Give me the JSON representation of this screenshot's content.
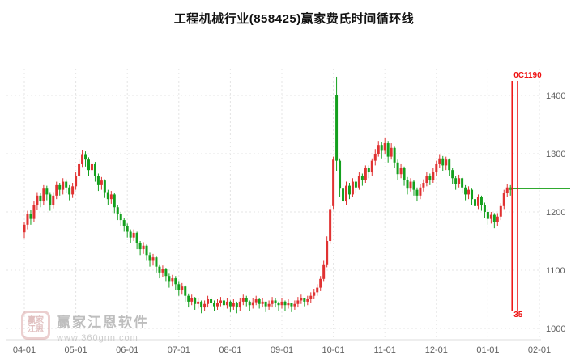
{
  "title": "工程机械行业(858425)赢家费氏时间循环线",
  "watermark": {
    "brand": "赢家江恩软件",
    "url": "www.360gnn.com",
    "logo_line1": "赢家",
    "logo_line2": "江恩"
  },
  "colors": {
    "up": "#e03232",
    "down": "#14a01e",
    "cycle_line": "#ee1111",
    "cycle_label": "#ee1111",
    "extension_line": "#2faa2f",
    "grid": "#e4e4e4",
    "axis_text": "#606060",
    "title_text": "#111111",
    "watermark_text": "#b3b3b3"
  },
  "annotations": {
    "cycle_top_label": "0C1190",
    "cycle_bottom_label": "35"
  },
  "chart_data": {
    "type": "candlestick",
    "title": "工程机械行业(858425)赢家费氏时间循环线",
    "x_tick_labels": [
      "04-01",
      "05-01",
      "06-01",
      "07-01",
      "08-01",
      "09-01",
      "10-01",
      "11-01",
      "12-01",
      "01-01",
      "02-01"
    ],
    "x_tick_indices": [
      0,
      16,
      32,
      48,
      64,
      80,
      96,
      112,
      128,
      144,
      160
    ],
    "y_ticks": [
      1000,
      1100,
      1200,
      1300,
      1400
    ],
    "ylim": [
      980,
      1450
    ],
    "grid": true,
    "legend": "none",
    "ohlc_format": "[open, close, low, high]",
    "cycle_lines_x_indices": [
      151.5,
      153.2
    ],
    "extension_line_price": 1240,
    "candles": [
      [
        1165,
        1178,
        1155,
        1182
      ],
      [
        1178,
        1196,
        1170,
        1202
      ],
      [
        1196,
        1188,
        1178,
        1204
      ],
      [
        1188,
        1212,
        1182,
        1218
      ],
      [
        1212,
        1228,
        1204,
        1234
      ],
      [
        1228,
        1218,
        1208,
        1232
      ],
      [
        1218,
        1240,
        1212,
        1246
      ],
      [
        1240,
        1230,
        1220,
        1245
      ],
      [
        1230,
        1212,
        1202,
        1234
      ],
      [
        1212,
        1228,
        1206,
        1234
      ],
      [
        1228,
        1246,
        1222,
        1252
      ],
      [
        1246,
        1238,
        1228,
        1250
      ],
      [
        1238,
        1252,
        1230,
        1258
      ],
      [
        1252,
        1242,
        1232,
        1256
      ],
      [
        1242,
        1230,
        1220,
        1246
      ],
      [
        1230,
        1244,
        1224,
        1250
      ],
      [
        1244,
        1262,
        1238,
        1268
      ],
      [
        1262,
        1282,
        1256,
        1290
      ],
      [
        1282,
        1298,
        1276,
        1306
      ],
      [
        1298,
        1290,
        1278,
        1304
      ],
      [
        1290,
        1272,
        1262,
        1294
      ],
      [
        1272,
        1282,
        1266,
        1288
      ],
      [
        1282,
        1262,
        1252,
        1286
      ],
      [
        1262,
        1246,
        1236,
        1266
      ],
      [
        1246,
        1254,
        1238,
        1260
      ],
      [
        1254,
        1234,
        1224,
        1256
      ],
      [
        1234,
        1222,
        1212,
        1238
      ],
      [
        1222,
        1230,
        1214,
        1236
      ],
      [
        1230,
        1208,
        1198,
        1232
      ],
      [
        1208,
        1196,
        1186,
        1212
      ],
      [
        1196,
        1186,
        1176,
        1200
      ],
      [
        1186,
        1176,
        1166,
        1190
      ],
      [
        1176,
        1166,
        1156,
        1180
      ],
      [
        1166,
        1156,
        1146,
        1170
      ],
      [
        1156,
        1164,
        1150,
        1170
      ],
      [
        1164,
        1146,
        1136,
        1166
      ],
      [
        1146,
        1136,
        1126,
        1150
      ],
      [
        1136,
        1142,
        1128,
        1148
      ],
      [
        1142,
        1126,
        1116,
        1144
      ],
      [
        1126,
        1116,
        1106,
        1130
      ],
      [
        1116,
        1122,
        1108,
        1128
      ],
      [
        1122,
        1106,
        1096,
        1124
      ],
      [
        1106,
        1096,
        1086,
        1110
      ],
      [
        1096,
        1102,
        1088,
        1108
      ],
      [
        1102,
        1090,
        1080,
        1104
      ],
      [
        1090,
        1080,
        1070,
        1094
      ],
      [
        1080,
        1086,
        1072,
        1092
      ],
      [
        1086,
        1076,
        1066,
        1090
      ],
      [
        1076,
        1066,
        1056,
        1080
      ],
      [
        1066,
        1072,
        1058,
        1078
      ],
      [
        1072,
        1056,
        1046,
        1074
      ],
      [
        1056,
        1046,
        1036,
        1060
      ],
      [
        1046,
        1052,
        1040,
        1058
      ],
      [
        1052,
        1042,
        1032,
        1054
      ],
      [
        1042,
        1046,
        1034,
        1052
      ],
      [
        1046,
        1036,
        1026,
        1048
      ],
      [
        1036,
        1042,
        1030,
        1048
      ],
      [
        1042,
        1050,
        1036,
        1056
      ],
      [
        1050,
        1044,
        1036,
        1054
      ],
      [
        1044,
        1038,
        1030,
        1048
      ],
      [
        1038,
        1044,
        1032,
        1050
      ],
      [
        1044,
        1048,
        1038,
        1054
      ],
      [
        1048,
        1040,
        1032,
        1052
      ],
      [
        1040,
        1046,
        1034,
        1052
      ],
      [
        1046,
        1038,
        1028,
        1048
      ],
      [
        1038,
        1044,
        1032,
        1050
      ],
      [
        1044,
        1036,
        1026,
        1046
      ],
      [
        1036,
        1046,
        1030,
        1052
      ],
      [
        1046,
        1052,
        1040,
        1058
      ],
      [
        1052,
        1046,
        1038,
        1056
      ],
      [
        1046,
        1040,
        1030,
        1048
      ],
      [
        1040,
        1045,
        1034,
        1052
      ],
      [
        1045,
        1050,
        1040,
        1056
      ],
      [
        1050,
        1042,
        1034,
        1052
      ],
      [
        1042,
        1046,
        1036,
        1052
      ],
      [
        1046,
        1038,
        1028,
        1046
      ],
      [
        1038,
        1042,
        1032,
        1048
      ],
      [
        1042,
        1048,
        1036,
        1054
      ],
      [
        1048,
        1044,
        1036,
        1052
      ],
      [
        1044,
        1040,
        1030,
        1046
      ],
      [
        1040,
        1046,
        1034,
        1052
      ],
      [
        1046,
        1040,
        1030,
        1048
      ],
      [
        1040,
        1044,
        1034,
        1050
      ],
      [
        1044,
        1038,
        1028,
        1044
      ],
      [
        1038,
        1042,
        1032,
        1048
      ],
      [
        1042,
        1048,
        1036,
        1054
      ],
      [
        1048,
        1052,
        1042,
        1058
      ],
      [
        1052,
        1046,
        1038,
        1052
      ],
      [
        1046,
        1050,
        1040,
        1056
      ],
      [
        1050,
        1056,
        1044,
        1062
      ],
      [
        1056,
        1062,
        1050,
        1068
      ],
      [
        1062,
        1070,
        1056,
        1076
      ],
      [
        1070,
        1085,
        1064,
        1090
      ],
      [
        1085,
        1110,
        1080,
        1116
      ],
      [
        1110,
        1150,
        1105,
        1158
      ],
      [
        1150,
        1205,
        1145,
        1212
      ],
      [
        1210,
        1290,
        1205,
        1295
      ],
      [
        1400,
        1288,
        1270,
        1432
      ],
      [
        1288,
        1240,
        1225,
        1292
      ],
      [
        1240,
        1218,
        1205,
        1248
      ],
      [
        1218,
        1245,
        1212,
        1252
      ],
      [
        1245,
        1230,
        1222,
        1250
      ],
      [
        1230,
        1252,
        1226,
        1258
      ],
      [
        1252,
        1242,
        1232,
        1256
      ],
      [
        1242,
        1262,
        1238,
        1268
      ],
      [
        1262,
        1255,
        1245,
        1266
      ],
      [
        1255,
        1275,
        1250,
        1280
      ],
      [
        1275,
        1268,
        1258,
        1280
      ],
      [
        1268,
        1288,
        1262,
        1292
      ],
      [
        1288,
        1300,
        1280,
        1308
      ],
      [
        1300,
        1315,
        1295,
        1322
      ],
      [
        1315,
        1305,
        1292,
        1320
      ],
      [
        1305,
        1318,
        1300,
        1328
      ],
      [
        1318,
        1295,
        1285,
        1322
      ],
      [
        1295,
        1310,
        1290,
        1318
      ],
      [
        1310,
        1285,
        1275,
        1312
      ],
      [
        1285,
        1265,
        1255,
        1290
      ],
      [
        1265,
        1275,
        1258,
        1282
      ],
      [
        1275,
        1255,
        1245,
        1278
      ],
      [
        1255,
        1240,
        1230,
        1260
      ],
      [
        1240,
        1252,
        1235,
        1258
      ],
      [
        1252,
        1238,
        1228,
        1255
      ],
      [
        1238,
        1228,
        1218,
        1242
      ],
      [
        1228,
        1242,
        1222,
        1248
      ],
      [
        1242,
        1250,
        1235,
        1256
      ],
      [
        1250,
        1262,
        1244,
        1268
      ],
      [
        1262,
        1255,
        1246,
        1266
      ],
      [
        1255,
        1268,
        1250,
        1275
      ],
      [
        1268,
        1282,
        1262,
        1288
      ],
      [
        1282,
        1292,
        1275,
        1298
      ],
      [
        1292,
        1280,
        1270,
        1296
      ],
      [
        1280,
        1290,
        1272,
        1295
      ],
      [
        1290,
        1272,
        1262,
        1292
      ],
      [
        1272,
        1258,
        1248,
        1275
      ],
      [
        1258,
        1248,
        1238,
        1262
      ],
      [
        1248,
        1258,
        1242,
        1264
      ],
      [
        1258,
        1242,
        1232,
        1260
      ],
      [
        1242,
        1230,
        1220,
        1246
      ],
      [
        1230,
        1238,
        1222,
        1244
      ],
      [
        1238,
        1222,
        1212,
        1240
      ],
      [
        1222,
        1210,
        1200,
        1226
      ],
      [
        1210,
        1225,
        1205,
        1230
      ],
      [
        1225,
        1212,
        1202,
        1228
      ],
      [
        1212,
        1200,
        1190,
        1216
      ],
      [
        1200,
        1188,
        1178,
        1205
      ],
      [
        1188,
        1195,
        1180,
        1200
      ],
      [
        1195,
        1182,
        1172,
        1198
      ],
      [
        1182,
        1192,
        1175,
        1198
      ],
      [
        1192,
        1210,
        1186,
        1215
      ],
      [
        1210,
        1232,
        1205,
        1238
      ],
      [
        1232,
        1242,
        1225,
        1248
      ],
      [
        1242,
        1238,
        1228,
        1246
      ]
    ]
  }
}
